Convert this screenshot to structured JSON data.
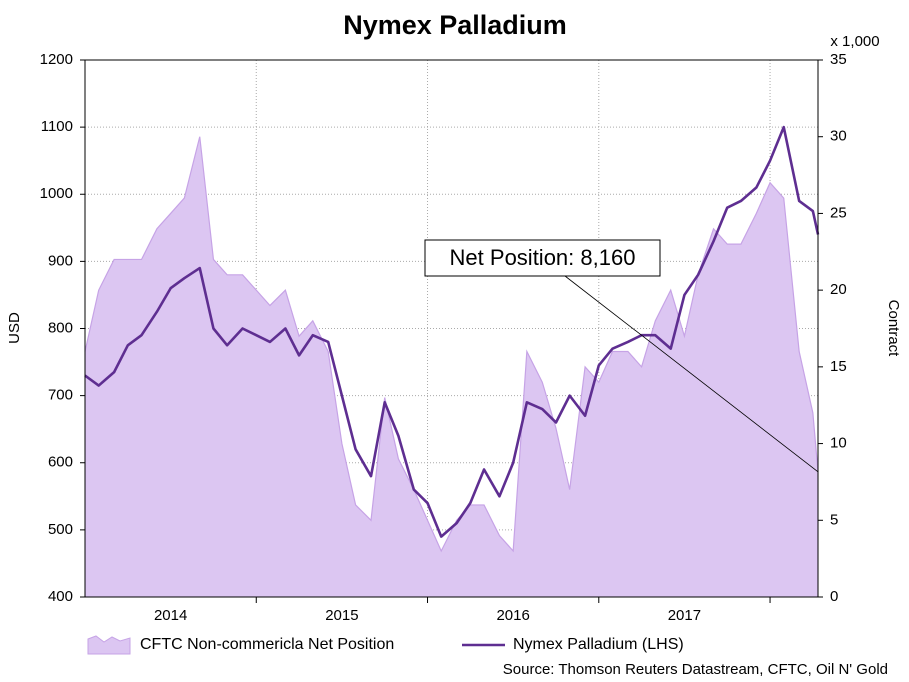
{
  "chart_data": {
    "type": "line",
    "title": "Nymex Palladium",
    "ylabel": "USD",
    "y2label": "Contract",
    "y2unit": "x 1,000",
    "annotation": "Net Position: 8,160",
    "source": "Source: Thomson Reuters Datastream, CFTC, Oil N' Gold",
    "x": [
      2014.0,
      2014.08,
      2014.17,
      2014.25,
      2014.33,
      2014.42,
      2014.5,
      2014.58,
      2014.67,
      2014.75,
      2014.83,
      2014.92,
      2015.0,
      2015.08,
      2015.17,
      2015.25,
      2015.33,
      2015.42,
      2015.5,
      2015.58,
      2015.67,
      2015.75,
      2015.83,
      2015.92,
      2016.0,
      2016.08,
      2016.17,
      2016.25,
      2016.33,
      2016.42,
      2016.5,
      2016.58,
      2016.67,
      2016.75,
      2016.83,
      2016.92,
      2017.0,
      2017.08,
      2017.17,
      2017.25,
      2017.33,
      2017.42,
      2017.5,
      2017.58,
      2017.67,
      2017.75,
      2017.83,
      2017.92,
      2018.0,
      2018.08,
      2018.17,
      2018.25,
      2018.28
    ],
    "xlim": [
      2014,
      2018.28
    ],
    "xticks": [
      {
        "value": 2014.5,
        "label": "2014"
      },
      {
        "value": 2015.5,
        "label": "2015"
      },
      {
        "value": 2016.5,
        "label": "2016"
      },
      {
        "value": 2017.5,
        "label": "2017"
      }
    ],
    "xgrid": [
      2015,
      2016,
      2017,
      2018
    ],
    "ylim": [
      400,
      1200
    ],
    "yticks": [
      400,
      500,
      600,
      700,
      800,
      900,
      1000,
      1100,
      1200
    ],
    "y2lim": [
      0,
      35
    ],
    "y2ticks": [
      0,
      5,
      10,
      15,
      20,
      25,
      30,
      35
    ],
    "grid": true,
    "legend": "bottom",
    "series": [
      {
        "name": "CFTC Non-commericla Net Position",
        "type": "area",
        "axis": "y2",
        "color": "#dcc6f2",
        "edge": "#c6a3e6",
        "values": [
          16,
          20,
          22,
          22,
          22,
          24,
          25,
          26,
          30,
          22,
          21,
          21,
          20,
          19,
          20,
          17,
          18,
          16,
          10,
          6,
          5,
          13,
          9,
          7,
          5,
          3,
          5,
          6,
          6,
          4,
          3,
          16,
          14,
          11,
          7,
          15,
          14,
          16,
          16,
          15,
          18,
          20,
          17,
          21,
          24,
          23,
          23,
          25,
          27,
          26,
          16,
          12,
          8.16
        ]
      },
      {
        "name": "Nymex Palladium (LHS)",
        "color": "#5e2e91",
        "values": [
          730,
          715,
          735,
          775,
          790,
          825,
          860,
          875,
          890,
          800,
          775,
          800,
          790,
          780,
          800,
          760,
          790,
          780,
          700,
          620,
          580,
          690,
          640,
          560,
          540,
          490,
          510,
          540,
          590,
          550,
          600,
          690,
          680,
          660,
          700,
          670,
          745,
          770,
          780,
          790,
          790,
          770,
          850,
          880,
          930,
          980,
          990,
          1010,
          1050,
          1100,
          990,
          975,
          940
        ]
      }
    ]
  }
}
